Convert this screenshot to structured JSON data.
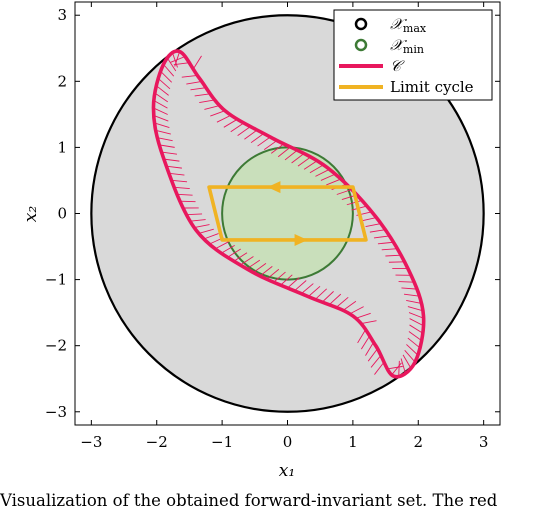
{
  "chart_data": {
    "type": "line",
    "xlabel": "x₁",
    "ylabel": "x₂",
    "xlim": [
      -3.25,
      3.25
    ],
    "ylim": [
      -3.2,
      3.2
    ],
    "xticks": [
      -3,
      -2,
      -1,
      0,
      1,
      2,
      3
    ],
    "yticks": [
      -3,
      -2,
      -1,
      0,
      1,
      2,
      3
    ],
    "xtick_labels": [
      "−3",
      "−2",
      "−1",
      "0",
      "1",
      "2",
      "3"
    ],
    "ytick_labels": [
      "−3",
      "−2",
      "−1",
      "0",
      "1",
      "2",
      "3"
    ],
    "grid": false,
    "legend_position": "top-right",
    "legend": [
      {
        "label": "𝒳",
        "sub": "max",
        "style": "circle",
        "color": "#000000"
      },
      {
        "label": "𝒳",
        "sub": "min",
        "style": "circle",
        "color": "#3d7a35"
      },
      {
        "label": "𝒞",
        "sub": "",
        "style": "line",
        "color": "#e8175d"
      },
      {
        "label": "Limit cycle",
        "sub": "",
        "style": "line",
        "color": "#f0b323"
      }
    ],
    "series": [
      {
        "name": "X_max",
        "kind": "circle",
        "center": [
          0,
          0
        ],
        "radius": 3.0,
        "stroke": "#000000",
        "fill": "#d9d9d9"
      },
      {
        "name": "X_min",
        "kind": "circle",
        "center": [
          0,
          0
        ],
        "radius": 1.0,
        "stroke": "#3d7a35",
        "fill": "#c6dfb5"
      },
      {
        "name": "C",
        "kind": "closed-curve",
        "stroke": "#e8175d",
        "hatch": "#e8175d",
        "points": [
          [
            -1.65,
            2.45
          ],
          [
            -1.9,
            2.25
          ],
          [
            -2.05,
            1.6
          ],
          [
            -1.9,
            0.85
          ],
          [
            -1.4,
            -0.25
          ],
          [
            -0.6,
            -0.85
          ],
          [
            0.3,
            -1.25
          ],
          [
            1.0,
            -1.55
          ],
          [
            1.35,
            -2.0
          ],
          [
            1.62,
            -2.46
          ],
          [
            1.95,
            -2.25
          ],
          [
            2.08,
            -1.55
          ],
          [
            1.85,
            -0.85
          ],
          [
            1.35,
            -0.05
          ],
          [
            0.6,
            0.7
          ],
          [
            -0.25,
            1.15
          ],
          [
            -0.95,
            1.55
          ],
          [
            -1.35,
            2.05
          ]
        ]
      },
      {
        "name": "Limit cycle",
        "kind": "closed-curve",
        "stroke": "#f0b323",
        "points": [
          [
            -1.2,
            0.4
          ],
          [
            1.0,
            0.4
          ],
          [
            1.2,
            -0.4
          ],
          [
            -1.0,
            -0.4
          ]
        ],
        "arrows": [
          [
            -0.2,
            0.4,
            "left"
          ],
          [
            0.2,
            -0.4,
            "right"
          ]
        ]
      }
    ]
  },
  "caption": "Visualization of the obtained forward-invariant set. The red"
}
